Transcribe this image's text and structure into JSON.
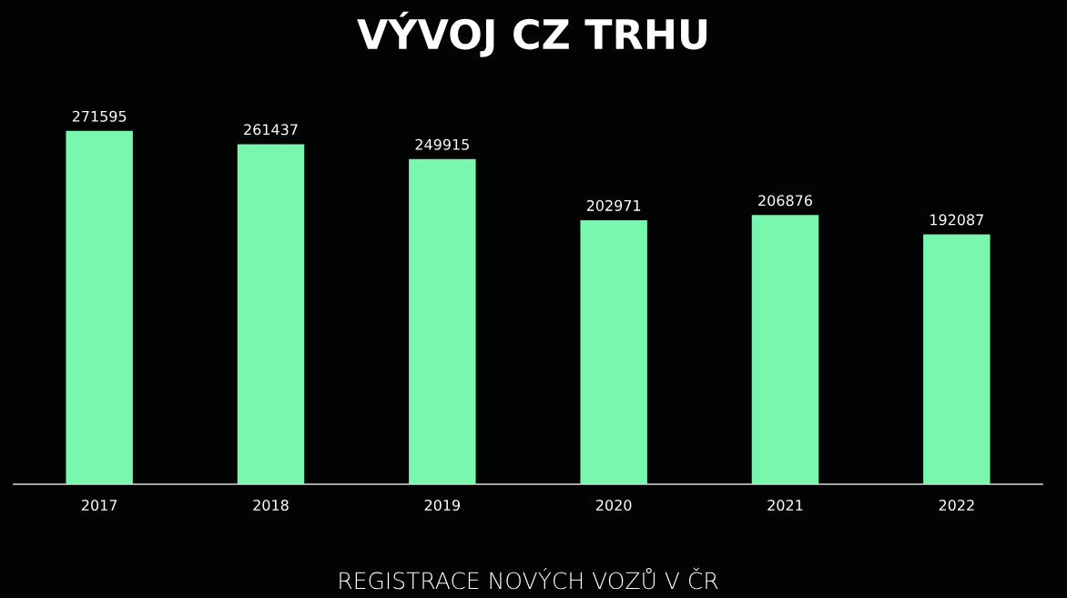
{
  "chart_data": {
    "type": "bar",
    "title": "VÝVOJ CZ TRHU",
    "xlabel": "REGISTRACE NOVÝCH VOZŮ V ČR",
    "categories": [
      "2017",
      "2018",
      "2019",
      "2020",
      "2021",
      "2022"
    ],
    "values": [
      271595,
      261437,
      249915,
      202971,
      206876,
      192087
    ],
    "color": "#7af7ae",
    "data_labels": true
  }
}
